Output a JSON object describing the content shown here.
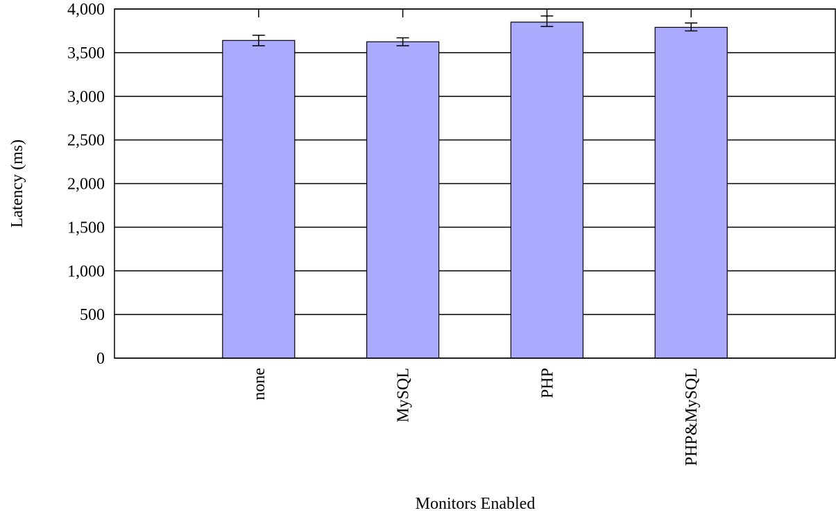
{
  "chart_data": {
    "type": "bar",
    "title": "",
    "xlabel": "Monitors Enabled",
    "ylabel": "Latency (ms)",
    "categories": [
      "none",
      "MySQL",
      "PHP",
      "PHP&MySQL"
    ],
    "values": [
      3640,
      3625,
      3850,
      3790
    ],
    "error_bars": [
      [
        3580,
        3700
      ],
      [
        3580,
        3670
      ],
      [
        3800,
        3920
      ],
      [
        3750,
        3840
      ]
    ],
    "ylim": [
      0,
      4000
    ],
    "yticks": [
      0,
      500,
      1000,
      1500,
      2000,
      2500,
      3000,
      3500,
      4000
    ],
    "ytick_labels": [
      "0",
      "500",
      "1,000",
      "1,500",
      "2,000",
      "2,500",
      "3,000",
      "3,500",
      "4,000"
    ],
    "grid": true,
    "bar_color": "#aaaaff",
    "bar_edge_color": "#000000",
    "legend": "none"
  }
}
